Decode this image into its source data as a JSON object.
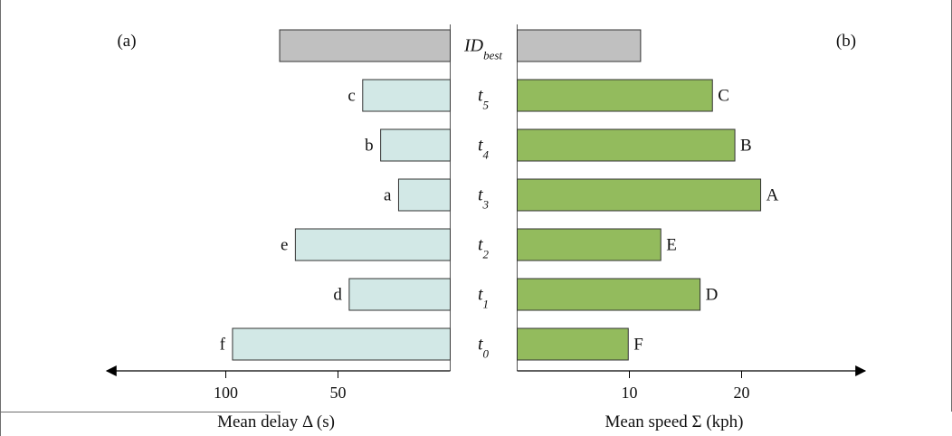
{
  "chart_data": [
    {
      "panel_label": "(a)",
      "type": "bar",
      "orientation": "horizontal",
      "direction": "leftward",
      "xlabel": "Mean delay Δ (s)",
      "xticks": [
        100,
        50
      ],
      "xlim": [
        0,
        108
      ],
      "categories": [
        "ID_best",
        "t5",
        "t4",
        "t3",
        "t2",
        "t1",
        "t0"
      ],
      "bar_labels": [
        "",
        "c",
        "b",
        "a",
        "e",
        "d",
        "f"
      ],
      "values": [
        76,
        39,
        31,
        23,
        69,
        45,
        97
      ],
      "colors": [
        "#c0c0c0",
        "#d2e8e6",
        "#d2e8e6",
        "#d2e8e6",
        "#d2e8e6",
        "#d2e8e6",
        "#d2e8e6"
      ]
    },
    {
      "panel_label": "(b)",
      "type": "bar",
      "orientation": "horizontal",
      "direction": "rightward",
      "xlabel": "Mean speed Σ (kph)",
      "xticks": [
        10,
        20
      ],
      "xlim": [
        0,
        28
      ],
      "categories": [
        "ID_best",
        "t5",
        "t4",
        "t3",
        "t2",
        "t1",
        "t0"
      ],
      "bar_labels": [
        "",
        "C",
        "B",
        "A",
        "E",
        "D",
        "F"
      ],
      "values": [
        11.0,
        17.4,
        19.4,
        21.7,
        12.8,
        16.3,
        9.9
      ],
      "colors": [
        "#c0c0c0",
        "#93bb5d",
        "#93bb5d",
        "#93bb5d",
        "#93bb5d",
        "#93bb5d",
        "#93bb5d"
      ]
    }
  ],
  "center_labels": [
    {
      "main": "ID",
      "sub": "best"
    },
    {
      "main": "t",
      "sub": "5"
    },
    {
      "main": "t",
      "sub": "4"
    },
    {
      "main": "t",
      "sub": "3"
    },
    {
      "main": "t",
      "sub": "2"
    },
    {
      "main": "t",
      "sub": "1"
    },
    {
      "main": "t",
      "sub": "0"
    }
  ]
}
